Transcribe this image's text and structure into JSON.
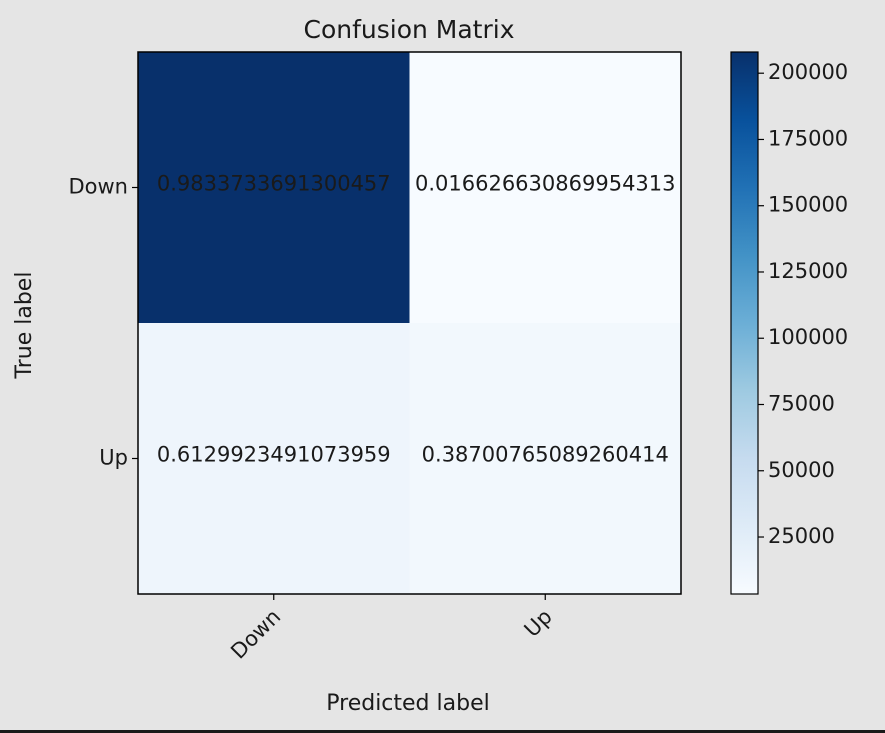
{
  "chart_data": {
    "type": "heatmap",
    "title": "Confusion Matrix",
    "xlabel": "Predicted label",
    "ylabel": "True label",
    "x_categories": [
      "Down",
      "Up"
    ],
    "y_categories": [
      "Down",
      "Up"
    ],
    "cell_labels": [
      [
        "0.9833733691300457",
        "0.016626630869954313"
      ],
      [
        "0.6129923491073959",
        "0.38700765089260414"
      ]
    ],
    "cell_values": [
      [
        208000,
        3500
      ],
      [
        13200,
        8300
      ]
    ],
    "colorbar": {
      "min": 3500,
      "max": 208000,
      "ticks": [
        25000,
        50000,
        75000,
        100000,
        125000,
        150000,
        175000,
        200000
      ],
      "colormap": "Blues",
      "low_color": "#f7fbff",
      "high_color": "#08306b"
    }
  }
}
